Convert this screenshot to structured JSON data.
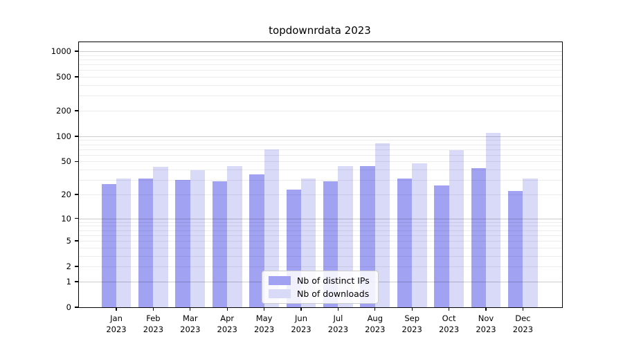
{
  "title": "topdownrdata 2023",
  "colors": {
    "distinct_ips_bar": "#a2a2f2",
    "downloads_bar": "#d9d9f8",
    "major_grid": "rgba(0,0,0,0.20)",
    "minor_grid": "rgba(0,0,0,0.07)",
    "axis": "#000000"
  },
  "legend": {
    "items": [
      {
        "label": "Nb of distinct IPs",
        "color": "#a2a2f2"
      },
      {
        "label": "Nb of downloads",
        "color": "#d9d9f8"
      }
    ]
  },
  "chart_data": {
    "type": "bar",
    "title": "topdownrdata 2023",
    "categories": [
      "Jan",
      "Feb",
      "Mar",
      "Apr",
      "May",
      "Jun",
      "Jul",
      "Aug",
      "Sep",
      "Oct",
      "Nov",
      "Dec"
    ],
    "tick_year": "2023",
    "series": [
      {
        "name": "Nb of distinct IPs",
        "color": "#a2a2f2",
        "values": [
          27,
          31,
          30,
          29,
          35,
          23,
          29,
          44,
          31,
          26,
          42,
          22
        ]
      },
      {
        "name": "Nb of downloads",
        "color": "#d9d9f8",
        "values": [
          31,
          43,
          39,
          44,
          70,
          31,
          44,
          83,
          48,
          68,
          110,
          31
        ]
      }
    ],
    "xlabel": "",
    "ylabel": "",
    "y_scale": "log10(1+v)",
    "y_ticks": [
      0,
      1,
      2,
      5,
      10,
      20,
      50,
      100,
      200,
      500,
      1000
    ],
    "y_major_gridlines": [
      1,
      10,
      100,
      1000
    ],
    "ylim": [
      0,
      1280
    ],
    "grid": true,
    "grid_above_bars": true,
    "legend_position": "bottom-center"
  }
}
